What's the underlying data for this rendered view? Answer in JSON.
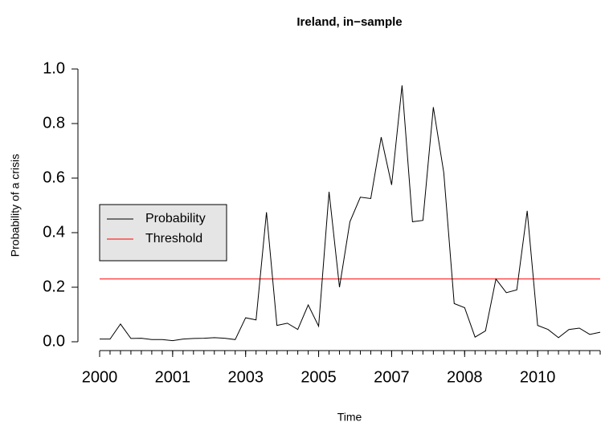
{
  "chart_data": {
    "type": "line",
    "title": "Ireland, in−sample",
    "xlabel": "Time",
    "ylabel": "Probability of a crisis",
    "x": [
      0,
      1,
      2,
      3,
      4,
      5,
      6,
      7,
      8,
      9,
      10,
      11,
      12,
      13,
      14,
      15,
      16,
      17,
      18,
      19,
      20,
      21,
      22,
      23,
      24,
      25,
      26,
      27,
      28,
      29,
      30,
      31,
      32,
      33,
      34,
      35,
      36,
      37,
      38,
      39,
      40,
      41,
      42,
      43,
      44,
      45,
      46,
      47,
      48
    ],
    "series": [
      {
        "name": "Probability",
        "color": "#000000",
        "values": [
          0.01,
          0.01,
          0.065,
          0.012,
          0.013,
          0.008,
          0.008,
          0.004,
          0.01,
          0.012,
          0.013,
          0.015,
          0.013,
          0.008,
          0.088,
          0.08,
          0.475,
          0.06,
          0.068,
          0.045,
          0.135,
          0.057,
          0.55,
          0.2,
          0.44,
          0.53,
          0.525,
          0.75,
          0.575,
          0.94,
          0.44,
          0.445,
          0.86,
          0.62,
          0.14,
          0.125,
          0.017,
          0.04,
          0.23,
          0.18,
          0.19,
          0.48,
          0.06,
          0.045,
          0.015,
          0.045,
          0.05,
          0.027,
          0.035
        ]
      }
    ],
    "threshold": {
      "name": "Threshold",
      "color": "#ff0000",
      "value": 0.23
    },
    "xlim": [
      0,
      48
    ],
    "xticks": [
      {
        "value": 0,
        "label": "2000"
      },
      {
        "value": 7,
        "label": "2001"
      },
      {
        "value": 14,
        "label": "2003"
      },
      {
        "value": 21,
        "label": "2005"
      },
      {
        "value": 28,
        "label": "2007"
      },
      {
        "value": 35,
        "label": "2008"
      },
      {
        "value": 42,
        "label": "2010"
      }
    ],
    "ylim": [
      0,
      1
    ],
    "yticks": [
      {
        "value": 0,
        "label": "0.0"
      },
      0.2,
      0.4,
      0.6,
      0.8,
      {
        "value": 1,
        "label": "1.0"
      }
    ],
    "legend": "left"
  }
}
